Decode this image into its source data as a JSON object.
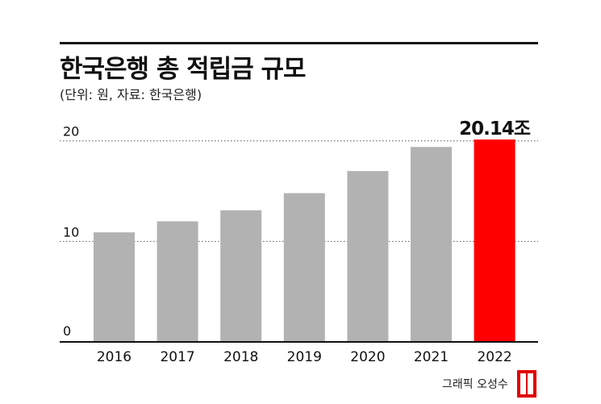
{
  "header": {
    "title": "한국은행 총 적립금 규모",
    "subtitle": "(단위: 원, 자료: 한국은행)"
  },
  "chart_data": {
    "type": "bar",
    "categories": [
      "2016",
      "2017",
      "2018",
      "2019",
      "2020",
      "2021",
      "2022"
    ],
    "values": [
      10.9,
      12.0,
      13.1,
      14.8,
      17.0,
      19.4,
      20.14
    ],
    "highlight_index": 6,
    "highlight_label": "20.14조",
    "yticks": [
      0,
      10,
      20
    ],
    "ylim": [
      0,
      20.14
    ],
    "grid": "dotted",
    "colors": {
      "bar": "#b2b2b2",
      "highlight": "#ff0000",
      "axis": "#111111",
      "grid": "#555555"
    }
  },
  "footer": {
    "credit": "그래픽 오성수"
  }
}
